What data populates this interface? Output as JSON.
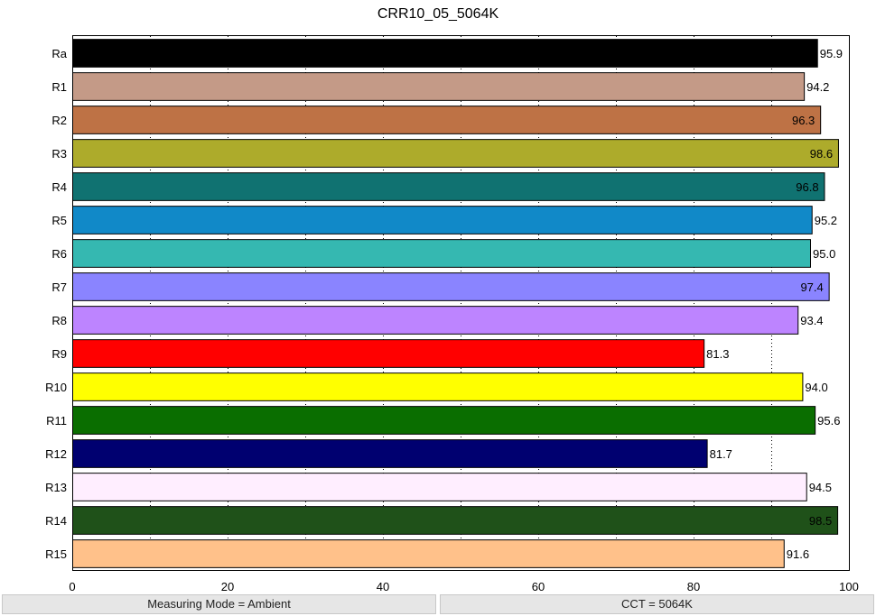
{
  "chart_data": {
    "type": "bar",
    "orientation": "horizontal",
    "title": "CRR10_05_5064K",
    "xlabel": "",
    "ylabel": "",
    "xlim": [
      0,
      100
    ],
    "x_ticks": [
      0,
      20,
      40,
      60,
      80,
      100
    ],
    "grid": "vertical dotted at 10-unit intervals",
    "categories": [
      "Ra",
      "R1",
      "R2",
      "R3",
      "R4",
      "R5",
      "R6",
      "R7",
      "R8",
      "R9",
      "R10",
      "R11",
      "R12",
      "R13",
      "R14",
      "R15"
    ],
    "values": [
      95.9,
      94.2,
      96.3,
      98.6,
      96.8,
      95.2,
      95.0,
      97.4,
      93.4,
      81.3,
      94.0,
      95.6,
      81.7,
      94.5,
      98.5,
      91.6
    ],
    "value_labels": [
      "95.9",
      "94.2",
      "96.3",
      "98.6",
      "96.8",
      "95.2",
      "95.0",
      "97.4",
      "93.4",
      "81.3",
      "94.0",
      "95.6",
      "81.7",
      "94.5",
      "98.5",
      "91.6"
    ],
    "colors": [
      "#000000",
      "#c49a87",
      "#be7245",
      "#adab2b",
      "#107271",
      "#1189c8",
      "#35b8b1",
      "#8a84ff",
      "#bd84ff",
      "#ff0000",
      "#ffff00",
      "#0a6e00",
      "#000070",
      "#ffeeff",
      "#1f5119",
      "#ffc18a"
    ]
  },
  "status": {
    "left": "Measuring Mode = Ambient",
    "right": "CCT = 5064K"
  }
}
